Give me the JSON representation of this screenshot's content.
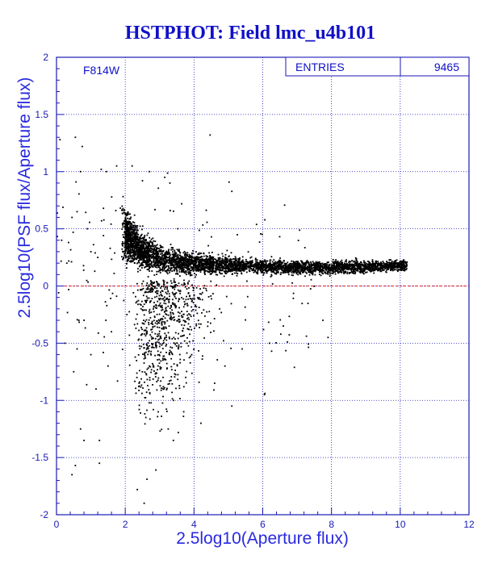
{
  "chart_data": {
    "type": "scatter",
    "title": "HSTPHOT: Field lmc_u4b101",
    "xlabel": "2.5log10(Aperture flux)",
    "ylabel": "2.5log10(PSF flux/Aperture flux)",
    "xlim": [
      0,
      12
    ],
    "ylim": [
      -2,
      2
    ],
    "x_ticks": [
      "0",
      "2",
      "4",
      "6",
      "8",
      "10",
      "12"
    ],
    "y_ticks": [
      "-2",
      "-1.5",
      "-1",
      "-0.5",
      "0",
      "0.5",
      "1",
      "1.5",
      "2"
    ],
    "filter_label": "F814W",
    "stats": {
      "label": "ENTRIES",
      "value": "9465"
    },
    "reference_line": {
      "y": 0
    },
    "grid": true,
    "density_profile": {
      "x": [
        2.0,
        2.5,
        3.0,
        3.5,
        4.0,
        5.0,
        6.0,
        7.0,
        8.0,
        9.0,
        10.0
      ],
      "y_center": [
        0.45,
        0.32,
        0.24,
        0.21,
        0.2,
        0.18,
        0.17,
        0.16,
        0.16,
        0.17,
        0.18
      ],
      "y_spread": [
        0.15,
        0.11,
        0.08,
        0.07,
        0.06,
        0.05,
        0.04,
        0.04,
        0.04,
        0.04,
        0.03
      ]
    },
    "points": [
      [
        0.1,
        1.28
      ],
      [
        0.55,
        1.3
      ],
      [
        0.75,
        1.22
      ],
      [
        0.7,
        1.0
      ],
      [
        1.3,
        1.02
      ],
      [
        1.45,
        1.0
      ],
      [
        1.75,
        1.05
      ],
      [
        2.2,
        1.05
      ],
      [
        2.5,
        0.92
      ],
      [
        2.7,
        1.0
      ],
      [
        3.15,
        0.95
      ],
      [
        3.3,
        0.9
      ],
      [
        0.15,
        0.4
      ],
      [
        0.35,
        0.38
      ],
      [
        0.6,
        0.65
      ],
      [
        0.9,
        0.5
      ],
      [
        1.0,
        0.3
      ],
      [
        1.2,
        0.25
      ],
      [
        0.25,
        -0.5
      ],
      [
        0.6,
        -0.55
      ],
      [
        0.8,
        -0.3
      ],
      [
        1.0,
        -0.6
      ],
      [
        1.15,
        -0.9
      ],
      [
        1.25,
        -1.35
      ],
      [
        0.7,
        -1.25
      ],
      [
        0.8,
        -1.35
      ],
      [
        1.25,
        -1.55
      ],
      [
        0.55,
        -1.57
      ],
      [
        0.45,
        -1.65
      ],
      [
        2.35,
        -1.78
      ],
      [
        2.55,
        -1.9
      ],
      [
        3.4,
        -1.35
      ],
      [
        3.25,
        -1.25
      ],
      [
        2.6,
        -1.15
      ],
      [
        2.7,
        -0.7
      ],
      [
        3.1,
        -0.9
      ],
      [
        3.4,
        -1.0
      ],
      [
        4.6,
        -0.85
      ],
      [
        4.9,
        -0.7
      ],
      [
        5.4,
        -0.55
      ],
      [
        6.2,
        -0.5
      ],
      [
        6.6,
        -0.35
      ],
      [
        7.9,
        -0.45
      ],
      [
        7.75,
        -0.3
      ],
      [
        0.5,
        -0.75
      ],
      [
        0.65,
        -0.3
      ],
      [
        0.45,
        0.6
      ],
      [
        0.3,
        0.2
      ],
      [
        1.6,
        -0.4
      ],
      [
        1.5,
        -0.7
      ],
      [
        2.05,
        -0.25
      ],
      [
        3.7,
        -1.1
      ],
      [
        4.2,
        -1.2
      ],
      [
        5.1,
        -1.05
      ],
      [
        6.05,
        -0.95
      ],
      [
        9.6,
        0.12
      ],
      [
        10.1,
        0.2
      ]
    ]
  }
}
